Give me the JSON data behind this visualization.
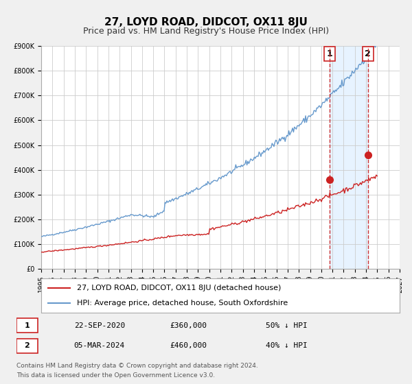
{
  "title": "27, LOYD ROAD, DIDCOT, OX11 8JU",
  "subtitle": "Price paid vs. HM Land Registry's House Price Index (HPI)",
  "bg_color": "#f0f0f0",
  "plot_bg_color": "#ffffff",
  "grid_color": "#cccccc",
  "ylabel": "",
  "xlabel": "",
  "ylim": [
    0,
    900000
  ],
  "xlim_start": 1995.0,
  "xlim_end": 2027.0,
  "x_ticks": [
    1995,
    1996,
    1997,
    1998,
    1999,
    2000,
    2001,
    2002,
    2003,
    2004,
    2005,
    2006,
    2007,
    2008,
    2009,
    2010,
    2011,
    2012,
    2013,
    2014,
    2015,
    2016,
    2017,
    2018,
    2019,
    2020,
    2021,
    2022,
    2023,
    2024,
    2025,
    2026,
    2027
  ],
  "y_ticks": [
    0,
    100000,
    200000,
    300000,
    400000,
    500000,
    600000,
    700000,
    800000,
    900000
  ],
  "y_labels": [
    "£0",
    "£100K",
    "£200K",
    "£300K",
    "£400K",
    "£500K",
    "£600K",
    "£700K",
    "£800K",
    "£900K"
  ],
  "hpi_color": "#6699cc",
  "price_color": "#cc2222",
  "marker1_color": "#cc2222",
  "marker2_color": "#cc2222",
  "vline_color": "#cc3333",
  "shade_color": "#ddeeff",
  "point1_x": 2020.73,
  "point1_y": 360000,
  "point2_x": 2024.17,
  "point2_y": 460000,
  "label1": "1",
  "label2": "2",
  "legend_label1": "27, LOYD ROAD, DIDCOT, OX11 8JU (detached house)",
  "legend_label2": "HPI: Average price, detached house, South Oxfordshire",
  "table_row1": [
    "1",
    "22-SEP-2020",
    "£360,000",
    "50% ↓ HPI"
  ],
  "table_row2": [
    "2",
    "05-MAR-2024",
    "£460,000",
    "40% ↓ HPI"
  ],
  "footer1": "Contains HM Land Registry data © Crown copyright and database right 2024.",
  "footer2": "This data is licensed under the Open Government Licence v3.0.",
  "title_fontsize": 11,
  "subtitle_fontsize": 9,
  "tick_fontsize": 7,
  "legend_fontsize": 8
}
